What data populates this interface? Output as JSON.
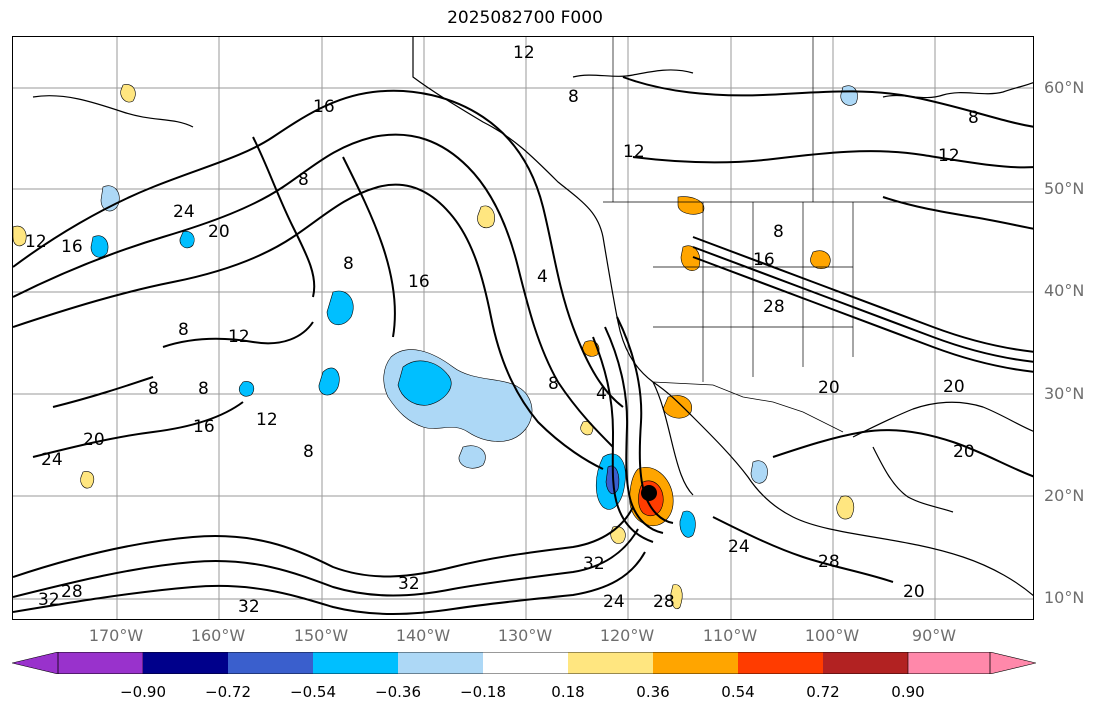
{
  "title": "2025082700 F000",
  "latitude_labels": [
    "60°N",
    "50°N",
    "40°N",
    "30°N",
    "20°N",
    "10°N"
  ],
  "longitude_labels": [
    "170°W",
    "160°W",
    "150°W",
    "140°W",
    "130°W",
    "120°W",
    "110°W",
    "100°W",
    "90°W"
  ],
  "colorbar": {
    "tick_labels": [
      "−0.90",
      "−0.72",
      "−0.54",
      "−0.36",
      "−0.18",
      "0.18",
      "0.36",
      "0.54",
      "0.72",
      "0.90"
    ],
    "colors": [
      "#9932cc",
      "#00008b",
      "#3a5fcd",
      "#00bfff",
      "#add8f6",
      "#ffffff",
      "#ffe680",
      "#ffa500",
      "#ff3c00",
      "#b22222",
      "#ff88aa"
    ]
  },
  "contour_labels": [
    "12",
    "8",
    "16",
    "4",
    "20",
    "24",
    "28",
    "32"
  ]
}
